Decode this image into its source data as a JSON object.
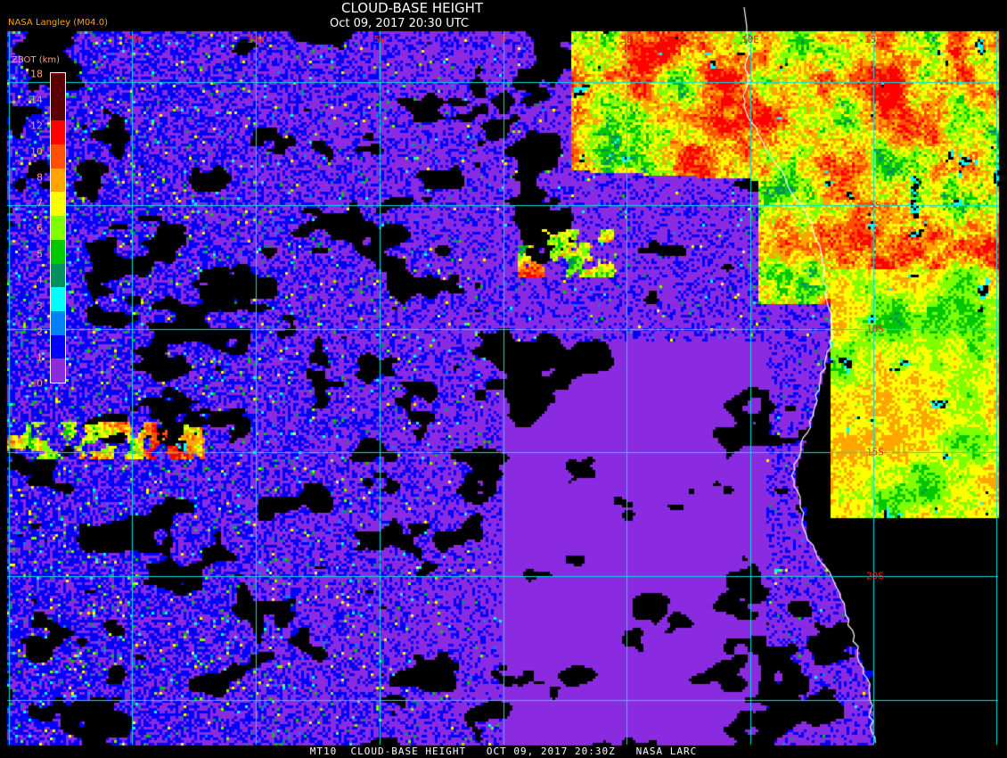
{
  "header": {
    "title": "CLOUD-BASE HEIGHT",
    "subtitle": "Oct 09, 2017 20:30 UTC",
    "credit": "NASA Langley (M04.0)"
  },
  "longitude_labels": [
    "15W",
    "10W",
    "5W",
    "0",
    "5E",
    "10E",
    "15E"
  ],
  "latitude_labels": [
    "0",
    "5S",
    "10S",
    "15S",
    "20S"
  ],
  "legend": {
    "title": "ZBOT (km)",
    "labels": [
      "18",
      "14",
      "12",
      "10",
      "8",
      "7",
      "6",
      "5",
      "4",
      "3",
      "2",
      "1",
      "0"
    ],
    "colors_top_to_bottom": [
      "#5a0000",
      "#ff0000",
      "#ff5000",
      "#ffa500",
      "#ffff00",
      "#80ff00",
      "#00c800",
      "#009060",
      "#00ffff",
      "#0080ff",
      "#0000ff",
      "#8a2be2"
    ]
  },
  "caption": "MT10  CLOUD-BASE HEIGHT   OCT 09, 2017 20:30Z   NASA LARC",
  "colors": {
    "grid": "#00e0e0",
    "coastline": "#ffffff",
    "label": "#ff2020",
    "ocean_low_cloud": "#8a2be2",
    "background": "#000000"
  }
}
